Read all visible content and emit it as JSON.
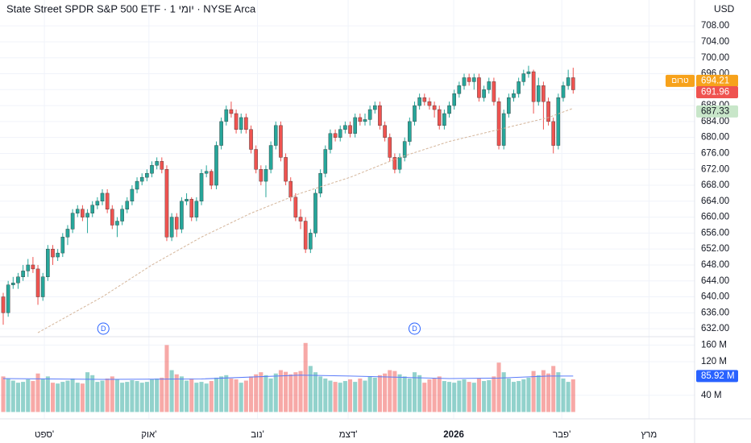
{
  "chart_data": {
    "type": "candlestick",
    "title": "State Street SPDR S&P 500 ETF · 1 יומי · NYSE Arca",
    "currency": "USD",
    "up_color": "#26a69a",
    "down_color": "#ef5350",
    "xlim": [
      -0.65,
      139.5
    ],
    "xticks": [
      {
        "value": 8.3,
        "label": "ספט'"
      },
      {
        "value": 29.4,
        "label": "אוק'"
      },
      {
        "value": 51.3,
        "label": "נוב'"
      },
      {
        "value": 69.6,
        "label": "דצמ'"
      },
      {
        "value": 90.9,
        "label": "2026"
      },
      {
        "value": 112.7,
        "label": "פבר'"
      },
      {
        "value": 130.3,
        "label": "מרץ"
      }
    ],
    "ylim": [
      630,
      714.5
    ],
    "yticks": [
      {
        "value": 708,
        "label": "708.00"
      },
      {
        "value": 704,
        "label": "704.00"
      },
      {
        "value": 700,
        "label": "700.00"
      },
      {
        "value": 696,
        "label": "696.00"
      },
      {
        "value": 692,
        "label": "692.00"
      },
      {
        "value": 688,
        "label": "688.00"
      },
      {
        "value": 684,
        "label": "684.00"
      },
      {
        "value": 680,
        "label": "680.00"
      },
      {
        "value": 676,
        "label": "676.00"
      },
      {
        "value": 672,
        "label": "672.00"
      },
      {
        "value": 668,
        "label": "668.00"
      },
      {
        "value": 664,
        "label": "664.00"
      },
      {
        "value": 660,
        "label": "660.00"
      },
      {
        "value": 656,
        "label": "656.00"
      },
      {
        "value": 652,
        "label": "652.00"
      },
      {
        "value": 648,
        "label": "648.00"
      },
      {
        "value": 644,
        "label": "644.00"
      },
      {
        "value": 640,
        "label": "640.00"
      },
      {
        "value": 636,
        "label": "636.00"
      },
      {
        "value": 632,
        "label": "632.00"
      }
    ],
    "open": [
      640,
      636,
      643,
      643.5,
      645,
      646.5,
      648,
      647,
      640,
      645,
      652,
      650,
      651,
      655,
      657,
      661,
      662,
      660,
      661,
      663,
      664,
      666,
      662,
      658,
      659,
      662,
      664,
      667,
      669,
      670,
      671,
      673,
      674,
      672,
      655,
      660,
      657,
      664,
      664.5,
      660,
      664,
      671,
      671.5,
      668,
      678,
      684,
      687,
      686,
      682,
      685,
      682,
      677,
      672,
      669,
      672,
      678,
      683,
      675,
      669,
      665,
      660,
      659,
      652,
      656,
      666,
      671,
      677,
      681,
      680,
      682,
      683,
      681,
      685,
      684,
      684.5,
      687,
      688,
      683,
      680,
      675,
      672,
      675,
      679,
      684,
      688,
      690,
      689,
      688,
      687,
      683,
      686,
      688,
      691,
      693,
      695,
      694,
      695,
      690,
      692,
      694,
      689,
      678,
      686,
      690,
      691,
      694,
      696,
      696.5,
      689,
      693,
      689,
      684,
      678,
      690,
      693,
      695
    ],
    "high": [
      641,
      644,
      645,
      646,
      648,
      649.5,
      650,
      648,
      646,
      653,
      653,
      652,
      656,
      658,
      662,
      663,
      663,
      662,
      664,
      665,
      667,
      667,
      663,
      660,
      663,
      665,
      668,
      670,
      671,
      672,
      674,
      675,
      675,
      673,
      661,
      661,
      665,
      666,
      665,
      665,
      672,
      673,
      672,
      679,
      685,
      688,
      689,
      687,
      686,
      686,
      683,
      678,
      673,
      673,
      679,
      684,
      684,
      676,
      670,
      666,
      662,
      660,
      657,
      667,
      672,
      678,
      682,
      682,
      683,
      684,
      684,
      686,
      686,
      686,
      688,
      689,
      689,
      684,
      681,
      676,
      676,
      680,
      685,
      689,
      691,
      691,
      690,
      689,
      688,
      687,
      689,
      692,
      694,
      696,
      696,
      696,
      696,
      693,
      695,
      695,
      690,
      687,
      691,
      692,
      695,
      697,
      698,
      697,
      695,
      694,
      690,
      685,
      691,
      694,
      697,
      697.5
    ],
    "low": [
      633,
      635,
      642,
      642,
      644,
      645,
      646,
      638,
      639,
      644,
      648,
      649,
      650,
      653,
      656,
      660,
      659,
      656,
      660,
      662,
      663,
      661,
      657,
      655,
      658,
      661,
      663,
      666,
      668,
      669,
      670,
      672,
      671,
      654,
      654,
      655,
      656,
      663,
      659,
      659,
      663,
      670,
      667,
      667,
      677,
      683,
      685,
      681,
      681,
      681,
      676,
      671,
      668,
      665,
      671,
      677,
      674,
      668,
      664,
      659,
      657,
      651,
      651,
      655,
      665,
      670,
      676,
      679,
      679,
      681,
      680,
      680,
      683,
      683,
      683,
      686,
      682,
      679,
      674,
      671,
      671,
      674,
      678,
      683,
      687,
      688,
      687,
      685,
      682,
      682,
      685,
      687,
      690,
      692,
      693,
      692,
      689,
      689,
      691,
      688,
      677,
      677,
      685,
      689,
      690,
      693,
      695,
      686,
      688,
      682,
      683,
      676,
      677,
      689,
      692,
      691
    ],
    "close": [
      636,
      643,
      643.5,
      645,
      646.5,
      648,
      647,
      640,
      645,
      652,
      650,
      651,
      655,
      657,
      661,
      662,
      660,
      661,
      663,
      664,
      666,
      662,
      658,
      659,
      662,
      664,
      667,
      669,
      670,
      671,
      673,
      674,
      672,
      655,
      660,
      657,
      664,
      664.5,
      660,
      664,
      671,
      671.5,
      668,
      678,
      684,
      687,
      686,
      682,
      685,
      682,
      677,
      672,
      669,
      672,
      678,
      683,
      675,
      669,
      665,
      660,
      659,
      652,
      656,
      666,
      671,
      677,
      681,
      680,
      682,
      683,
      681,
      685,
      684,
      684.5,
      687,
      688,
      683,
      680,
      675,
      672,
      675,
      679,
      684,
      688,
      690,
      689,
      688,
      687,
      683,
      686,
      688,
      691,
      693,
      695,
      694,
      695,
      690,
      692,
      694,
      689,
      678,
      686,
      690,
      691,
      694,
      696,
      696.5,
      689,
      693,
      689,
      684,
      678,
      690,
      693,
      695,
      691.96
    ],
    "ma": {
      "color": "#d4b59a",
      "x": [
        7,
        20,
        30,
        40,
        50,
        60,
        70,
        80,
        90,
        100,
        110,
        115
      ],
      "values": [
        631,
        640,
        648,
        655,
        661,
        666,
        670,
        675,
        679,
        682,
        685,
        687.33
      ]
    },
    "premarket": {
      "value": 694.21,
      "tag": "טרום",
      "color": "#f7a21b"
    },
    "dividends": {
      "label": "D",
      "x": [
        20.2,
        83
      ]
    },
    "volume": {
      "ylim": [
        0,
        180
      ],
      "yticks": [
        {
          "value": 40,
          "label": "40 M"
        },
        {
          "value": 120,
          "label": "120 M"
        },
        {
          "value": 160,
          "label": "160 M"
        }
      ],
      "values": [
        85,
        80,
        75,
        70,
        72,
        78,
        74,
        92,
        80,
        85,
        70,
        68,
        72,
        75,
        80,
        70,
        68,
        95,
        88,
        72,
        75,
        80,
        85,
        78,
        70,
        72,
        76,
        74,
        70,
        72,
        78,
        80,
        82,
        160,
        100,
        90,
        85,
        75,
        80,
        70,
        72,
        68,
        74,
        82,
        85,
        88,
        80,
        78,
        70,
        75,
        85,
        90,
        95,
        88,
        80,
        92,
        100,
        96,
        90,
        95,
        98,
        165,
        110,
        95,
        85,
        80,
        75,
        72,
        70,
        74,
        78,
        72,
        80,
        75,
        85,
        82,
        88,
        92,
        100,
        98,
        90,
        85,
        80,
        95,
        88,
        70,
        78,
        80,
        85,
        74,
        72,
        70,
        75,
        78,
        72,
        70,
        80,
        74,
        76,
        85,
        118,
        95,
        80,
        72,
        74,
        78,
        82,
        98,
        88,
        100,
        92,
        110,
        95,
        80,
        72,
        78
      ],
      "ma": {
        "color": "#5b7cfa",
        "x": [
          0,
          20,
          40,
          60,
          70,
          80,
          90,
          100,
          110,
          115
        ],
        "values": [
          80,
          78,
          79,
          88,
          86,
          83,
          80,
          81,
          86,
          85.92
        ],
        "value_labels": [
          null,
          null,
          null,
          null,
          null,
          null,
          null,
          null,
          null,
          "85.92 M"
        ]
      }
    }
  }
}
